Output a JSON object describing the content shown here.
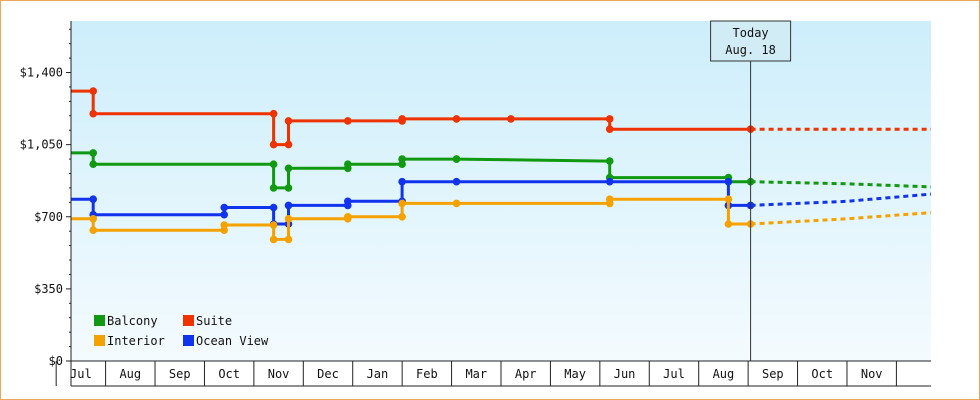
{
  "chart_data": {
    "type": "line",
    "title": "",
    "xlabel": "",
    "ylabel": "",
    "y_ticks": [
      "$0",
      "$350",
      "$700",
      "$1,050",
      "$1,400"
    ],
    "y_tick_values": [
      0,
      350,
      700,
      1050,
      1400
    ],
    "ylim": [
      0,
      1650
    ],
    "x_months": [
      "Jul",
      "Aug",
      "Sep",
      "Oct",
      "Nov",
      "Dec",
      "Jan",
      "Feb",
      "Mar",
      "Apr",
      "May",
      "Jun",
      "Jul",
      "Aug",
      "Sep",
      "Oct",
      "Nov"
    ],
    "x_axis_start_month_index": -0.2,
    "x_axis_end_month_index": 17.2,
    "grid": false,
    "legend_position": "bottom-left",
    "today": {
      "line1": "Today",
      "line2": "Aug. 18",
      "x": 13.55
    },
    "series": [
      {
        "name": "Suite",
        "color": "#ee3300",
        "points": [
          [
            -0.2,
            1310
          ],
          [
            0.25,
            1310
          ],
          [
            0.25,
            1200
          ],
          [
            3.9,
            1200
          ],
          [
            3.9,
            1050
          ],
          [
            4.2,
            1050
          ],
          [
            4.2,
            1165
          ],
          [
            5.4,
            1165
          ],
          [
            6.5,
            1165
          ],
          [
            6.5,
            1175
          ],
          [
            7.6,
            1175
          ],
          [
            8.7,
            1175
          ],
          [
            10.7,
            1175
          ],
          [
            10.7,
            1125
          ],
          [
            13.55,
            1125
          ]
        ],
        "forecast": [
          [
            13.55,
            1125
          ],
          [
            17.2,
            1125
          ]
        ]
      },
      {
        "name": "Balcony",
        "color": "#119911",
        "points": [
          [
            -0.2,
            1010
          ],
          [
            0.25,
            1010
          ],
          [
            0.25,
            955
          ],
          [
            3.9,
            955
          ],
          [
            3.9,
            840
          ],
          [
            4.2,
            840
          ],
          [
            4.2,
            935
          ],
          [
            5.4,
            935
          ],
          [
            5.4,
            955
          ],
          [
            6.5,
            955
          ],
          [
            6.5,
            980
          ],
          [
            7.6,
            980
          ],
          [
            7.6,
            980
          ],
          [
            10.7,
            970
          ],
          [
            10.7,
            890
          ],
          [
            13.1,
            890
          ],
          [
            13.1,
            870
          ],
          [
            13.55,
            870
          ]
        ],
        "forecast": [
          [
            13.55,
            870
          ],
          [
            15.5,
            860
          ],
          [
            17.2,
            845
          ]
        ]
      },
      {
        "name": "Ocean View",
        "color": "#1133ee",
        "points": [
          [
            -0.2,
            785
          ],
          [
            0.25,
            785
          ],
          [
            0.25,
            710
          ],
          [
            2.9,
            710
          ],
          [
            2.9,
            745
          ],
          [
            3.9,
            745
          ],
          [
            3.9,
            665
          ],
          [
            4.2,
            665
          ],
          [
            4.2,
            755
          ],
          [
            5.4,
            755
          ],
          [
            5.4,
            775
          ],
          [
            6.5,
            775
          ],
          [
            6.5,
            870
          ],
          [
            7.6,
            870
          ],
          [
            10.7,
            870
          ],
          [
            13.1,
            870
          ],
          [
            13.1,
            755
          ],
          [
            13.55,
            755
          ]
        ],
        "forecast": [
          [
            13.55,
            755
          ],
          [
            15.5,
            775
          ],
          [
            17.2,
            810
          ]
        ]
      },
      {
        "name": "Interior",
        "color": "#f5a100",
        "points": [
          [
            -0.2,
            690
          ],
          [
            0.25,
            690
          ],
          [
            0.25,
            635
          ],
          [
            2.9,
            635
          ],
          [
            2.9,
            660
          ],
          [
            3.9,
            660
          ],
          [
            3.9,
            590
          ],
          [
            4.2,
            590
          ],
          [
            4.2,
            690
          ],
          [
            5.4,
            690
          ],
          [
            5.4,
            700
          ],
          [
            6.5,
            700
          ],
          [
            6.5,
            765
          ],
          [
            7.6,
            765
          ],
          [
            10.7,
            765
          ],
          [
            10.7,
            785
          ],
          [
            13.1,
            785
          ],
          [
            13.1,
            665
          ],
          [
            13.55,
            665
          ]
        ],
        "forecast": [
          [
            13.55,
            665
          ],
          [
            15.5,
            690
          ],
          [
            17.2,
            720
          ]
        ]
      }
    ],
    "legend": [
      {
        "name": "Balcony",
        "color": "#119911"
      },
      {
        "name": "Suite",
        "color": "#ee3300"
      },
      {
        "name": "Interior",
        "color": "#f5a100"
      },
      {
        "name": "Ocean View",
        "color": "#1133ee"
      }
    ]
  }
}
